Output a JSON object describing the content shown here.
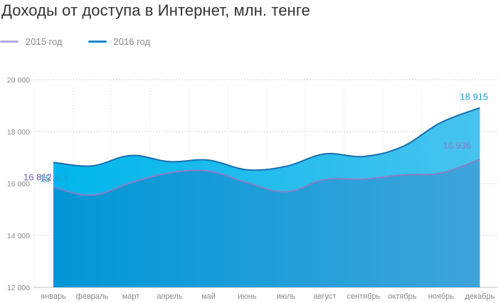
{
  "chart_data": {
    "type": "area",
    "title": "Доходы от доступа в Интернет, млн. тенге",
    "xlabel": "",
    "ylabel": "",
    "categories": [
      "январь",
      "февраль",
      "март",
      "апрель",
      "май",
      "июнь",
      "июль",
      "август",
      "сентябрь",
      "октябрь",
      "ноябрь",
      "декабрь"
    ],
    "series": [
      {
        "name": "2016 год",
        "color": "#1a6fae",
        "fill_top": "#3cc3ef",
        "values": [
          16812,
          16680,
          17080,
          16840,
          16900,
          16530,
          16660,
          17140,
          17040,
          17420,
          18350,
          18915
        ]
      },
      {
        "name": "2015 год",
        "color": "#8a7fc7",
        "fill_top": "#0aa9e0",
        "values": [
          15854,
          15550,
          16030,
          16410,
          16480,
          16030,
          15680,
          16150,
          16170,
          16330,
          16400,
          16936
        ]
      }
    ],
    "ylim": [
      12000,
      20000
    ],
    "yticks": [
      12000,
      14000,
      16000,
      18000,
      20000
    ],
    "ytick_labels": [
      "12 000",
      "14 000",
      "16 000",
      "18 000",
      "20 000"
    ],
    "grid": true,
    "legend_position": "top-left",
    "annotations": [
      {
        "text": "15 854",
        "series": "2015 год",
        "index": 0,
        "color": "#1aa3d6"
      },
      {
        "text": "16 812",
        "series": "2016 год",
        "index": 0,
        "color": "#6f5fae"
      },
      {
        "text": "18 915",
        "series": "2016 год",
        "index": 11,
        "color": "#1aa3d6"
      },
      {
        "text": "16 936",
        "series": "2015 год",
        "index": 11,
        "color": "#8a7fc7"
      }
    ]
  }
}
